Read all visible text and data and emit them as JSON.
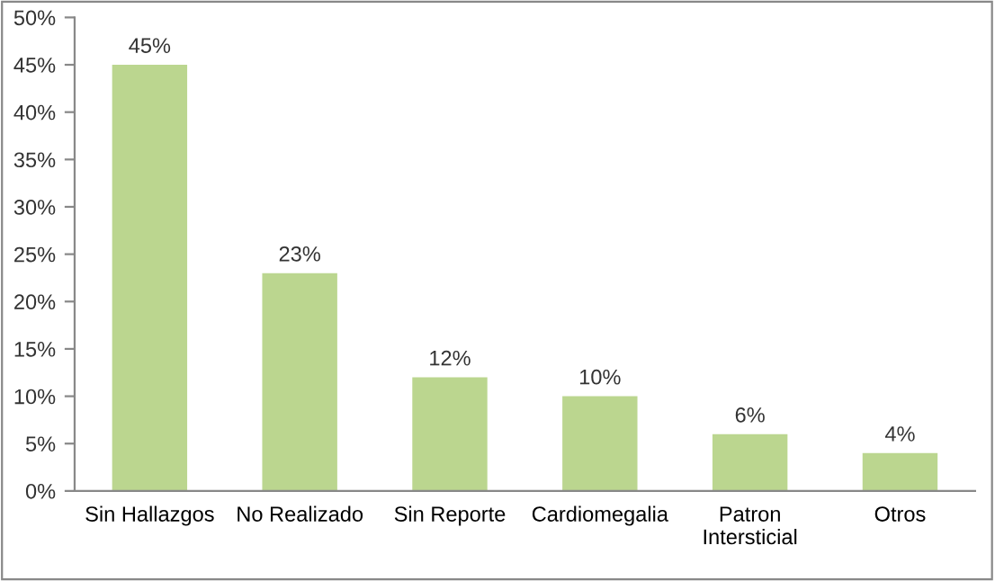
{
  "chart_data": {
    "type": "bar",
    "categories": [
      "Sin Hallazgos",
      "No Realizado",
      "Sin Reporte",
      "Cardiomegalia",
      "Patron\nIntersticial",
      "Otros"
    ],
    "values": [
      45,
      23,
      12,
      10,
      6,
      4
    ],
    "value_labels": [
      "45%",
      "23%",
      "12%",
      "10%",
      "6%",
      "4%"
    ],
    "color": "#bbd68f",
    "ylim": [
      0,
      50
    ],
    "yticks": [
      {
        "value": 0,
        "label": "0%"
      },
      {
        "value": 5,
        "label": "5%"
      },
      {
        "value": 10,
        "label": "10%"
      },
      {
        "value": 15,
        "label": "15%"
      },
      {
        "value": 20,
        "label": "20%"
      },
      {
        "value": 25,
        "label": "25%"
      },
      {
        "value": 30,
        "label": "30%"
      },
      {
        "value": 35,
        "label": "35%"
      },
      {
        "value": 40,
        "label": "40%"
      },
      {
        "value": 45,
        "label": "45%"
      },
      {
        "value": 50,
        "label": "50%"
      }
    ],
    "grid": false,
    "legend": false
  }
}
